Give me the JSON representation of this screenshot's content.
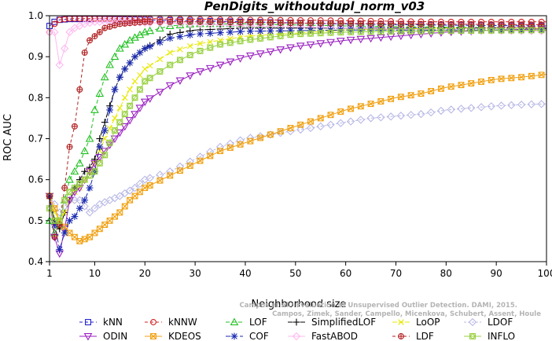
{
  "chart_data": {
    "type": "line",
    "title": "PenDigits_withoutdupl_norm_v03",
    "xlabel": "Neighborhood size",
    "ylabel": "ROC AUC",
    "xlim": [
      1,
      100
    ],
    "ylim": [
      0.4,
      1.0
    ],
    "xticks": [
      1,
      10,
      20,
      30,
      40,
      50,
      60,
      70,
      80,
      90,
      100
    ],
    "yticks": [
      0.4,
      0.5,
      0.6,
      0.7,
      0.8,
      0.9,
      1.0
    ],
    "legend_position": "bottom",
    "watermark": [
      "Campos et al.: Evaluation of Unsupervised Outlier Detection. DAMI, 2015.",
      "Campos, Zimek, Sander, Campello, Micenkova, Schubert, Assent, Houle"
    ],
    "series": [
      {
        "name": "kNN",
        "color": "#1f1fd0",
        "marker": "square",
        "dash": "4,3",
        "points": [
          [
            1,
            0.975
          ],
          [
            2,
            0.985
          ],
          [
            3,
            0.99
          ],
          [
            5,
            0.992
          ],
          [
            10,
            0.992
          ],
          [
            20,
            0.99
          ],
          [
            40,
            0.985
          ],
          [
            60,
            0.98
          ],
          [
            80,
            0.977
          ],
          [
            100,
            0.975
          ]
        ]
      },
      {
        "name": "kNNW",
        "color": "#d02020",
        "marker": "circle",
        "dash": "4,3",
        "points": [
          [
            1,
            0.96
          ],
          [
            2,
            0.98
          ],
          [
            3,
            0.99
          ],
          [
            5,
            0.993
          ],
          [
            10,
            0.993
          ],
          [
            20,
            0.993
          ],
          [
            40,
            0.99
          ],
          [
            60,
            0.988
          ],
          [
            80,
            0.985
          ],
          [
            100,
            0.985
          ]
        ]
      },
      {
        "name": "LOF",
        "color": "#20c020",
        "marker": "triangle",
        "dash": "5,3",
        "points": [
          [
            1,
            0.5
          ],
          [
            2,
            0.47
          ],
          [
            3,
            0.49
          ],
          [
            4,
            0.55
          ],
          [
            5,
            0.6
          ],
          [
            6,
            0.62
          ],
          [
            7,
            0.64
          ],
          [
            8,
            0.67
          ],
          [
            9,
            0.7
          ],
          [
            10,
            0.77
          ],
          [
            11,
            0.81
          ],
          [
            12,
            0.85
          ],
          [
            13,
            0.88
          ],
          [
            14,
            0.9
          ],
          [
            15,
            0.92
          ],
          [
            17,
            0.94
          ],
          [
            20,
            0.96
          ],
          [
            25,
            0.975
          ],
          [
            30,
            0.98
          ],
          [
            40,
            0.98
          ],
          [
            60,
            0.975
          ],
          [
            80,
            0.972
          ],
          [
            100,
            0.97
          ]
        ]
      },
      {
        "name": "SimplifiedLOF",
        "color": "#000000",
        "marker": "plus",
        "dash": "6,2",
        "points": [
          [
            1,
            0.56
          ],
          [
            2,
            0.5
          ],
          [
            3,
            0.48
          ],
          [
            4,
            0.52
          ],
          [
            5,
            0.55
          ],
          [
            6,
            0.58
          ],
          [
            7,
            0.6
          ],
          [
            8,
            0.62
          ],
          [
            9,
            0.63
          ],
          [
            10,
            0.65
          ],
          [
            11,
            0.7
          ],
          [
            12,
            0.74
          ],
          [
            13,
            0.78
          ],
          [
            14,
            0.82
          ],
          [
            15,
            0.85
          ],
          [
            16,
            0.87
          ],
          [
            18,
            0.9
          ],
          [
            20,
            0.92
          ],
          [
            25,
            0.955
          ],
          [
            30,
            0.965
          ],
          [
            40,
            0.97
          ],
          [
            60,
            0.97
          ],
          [
            80,
            0.97
          ],
          [
            100,
            0.97
          ]
        ]
      },
      {
        "name": "LoOP",
        "color": "#e8e800",
        "marker": "x",
        "dash": "6,2",
        "points": [
          [
            1,
            0.56
          ],
          [
            2,
            0.52
          ],
          [
            3,
            0.5
          ],
          [
            4,
            0.52
          ],
          [
            5,
            0.55
          ],
          [
            6,
            0.57
          ],
          [
            7,
            0.58
          ],
          [
            8,
            0.6
          ],
          [
            9,
            0.62
          ],
          [
            10,
            0.64
          ],
          [
            12,
            0.7
          ],
          [
            14,
            0.75
          ],
          [
            16,
            0.8
          ],
          [
            18,
            0.84
          ],
          [
            20,
            0.87
          ],
          [
            25,
            0.91
          ],
          [
            30,
            0.93
          ],
          [
            40,
            0.95
          ],
          [
            60,
            0.965
          ],
          [
            80,
            0.97
          ],
          [
            100,
            0.97
          ]
        ]
      },
      {
        "name": "LDOF",
        "color": "#b8b8e6",
        "marker": "diamond",
        "dash": "3,2",
        "points": [
          [
            1,
            0.56
          ],
          [
            3,
            0.52
          ],
          [
            5,
            0.55
          ],
          [
            7,
            0.55
          ],
          [
            9,
            0.52
          ],
          [
            11,
            0.54
          ],
          [
            13,
            0.55
          ],
          [
            15,
            0.56
          ],
          [
            18,
            0.58
          ],
          [
            20,
            0.6
          ],
          [
            25,
            0.62
          ],
          [
            30,
            0.65
          ],
          [
            35,
            0.68
          ],
          [
            40,
            0.7
          ],
          [
            45,
            0.71
          ],
          [
            50,
            0.72
          ],
          [
            55,
            0.73
          ],
          [
            60,
            0.74
          ],
          [
            65,
            0.75
          ],
          [
            70,
            0.755
          ],
          [
            75,
            0.76
          ],
          [
            80,
            0.77
          ],
          [
            85,
            0.775
          ],
          [
            90,
            0.78
          ],
          [
            95,
            0.783
          ],
          [
            100,
            0.785
          ]
        ]
      },
      {
        "name": "ODIN",
        "color": "#9a20c0",
        "marker": "triangle-down",
        "dash": "",
        "points": [
          [
            1,
            0.56
          ],
          [
            2,
            0.46
          ],
          [
            3,
            0.42
          ],
          [
            4,
            0.48
          ],
          [
            5,
            0.55
          ],
          [
            6,
            0.57
          ],
          [
            7,
            0.58
          ],
          [
            8,
            0.6
          ],
          [
            9,
            0.62
          ],
          [
            10,
            0.64
          ],
          [
            12,
            0.67
          ],
          [
            14,
            0.7
          ],
          [
            16,
            0.73
          ],
          [
            18,
            0.76
          ],
          [
            20,
            0.79
          ],
          [
            25,
            0.83
          ],
          [
            30,
            0.86
          ],
          [
            35,
            0.88
          ],
          [
            40,
            0.9
          ],
          [
            50,
            0.925
          ],
          [
            60,
            0.94
          ],
          [
            70,
            0.95
          ],
          [
            80,
            0.96
          ],
          [
            90,
            0.965
          ],
          [
            100,
            0.968
          ]
        ]
      },
      {
        "name": "KDEOS",
        "color": "#f0a010",
        "marker": "square-x",
        "dash": "",
        "points": [
          [
            1,
            0.56
          ],
          [
            3,
            0.5
          ],
          [
            5,
            0.47
          ],
          [
            7,
            0.45
          ],
          [
            9,
            0.46
          ],
          [
            11,
            0.48
          ],
          [
            13,
            0.5
          ],
          [
            15,
            0.52
          ],
          [
            17,
            0.55
          ],
          [
            20,
            0.58
          ],
          [
            25,
            0.61
          ],
          [
            30,
            0.64
          ],
          [
            35,
            0.67
          ],
          [
            40,
            0.69
          ],
          [
            45,
            0.71
          ],
          [
            50,
            0.73
          ],
          [
            55,
            0.75
          ],
          [
            60,
            0.77
          ],
          [
            65,
            0.785
          ],
          [
            70,
            0.8
          ],
          [
            75,
            0.81
          ],
          [
            80,
            0.825
          ],
          [
            85,
            0.835
          ],
          [
            90,
            0.845
          ],
          [
            95,
            0.85
          ],
          [
            100,
            0.857
          ]
        ]
      },
      {
        "name": "FastABOD",
        "color": "#ffb8f0",
        "marker": "diamond",
        "dash": "",
        "points": [
          [
            1,
            0.96
          ],
          [
            2,
            0.96
          ],
          [
            3,
            0.88
          ],
          [
            4,
            0.92
          ],
          [
            5,
            0.96
          ],
          [
            6,
            0.97
          ],
          [
            8,
            0.98
          ],
          [
            10,
            0.985
          ],
          [
            15,
            0.985
          ],
          [
            20,
            0.983
          ],
          [
            30,
            0.98
          ],
          [
            40,
            0.975
          ],
          [
            60,
            0.97
          ],
          [
            80,
            0.965
          ],
          [
            100,
            0.962
          ]
        ]
      },
      {
        "name": "COF",
        "color": "#1a2ab0",
        "marker": "asterisk",
        "dash": "6,3",
        "points": [
          [
            1,
            0.56
          ],
          [
            2,
            0.49
          ],
          [
            3,
            0.43
          ],
          [
            4,
            0.47
          ],
          [
            5,
            0.5
          ],
          [
            6,
            0.51
          ],
          [
            7,
            0.53
          ],
          [
            8,
            0.55
          ],
          [
            9,
            0.58
          ],
          [
            10,
            0.62
          ],
          [
            11,
            0.68
          ],
          [
            12,
            0.72
          ],
          [
            13,
            0.77
          ],
          [
            14,
            0.82
          ],
          [
            15,
            0.85
          ],
          [
            16,
            0.87
          ],
          [
            18,
            0.9
          ],
          [
            20,
            0.92
          ],
          [
            25,
            0.945
          ],
          [
            30,
            0.955
          ],
          [
            40,
            0.962
          ],
          [
            60,
            0.965
          ],
          [
            80,
            0.965
          ],
          [
            100,
            0.965
          ]
        ]
      },
      {
        "name": "LDF",
        "color": "#b02020",
        "marker": "circle-plus",
        "dash": "4,3",
        "points": [
          [
            1,
            0.56
          ],
          [
            2,
            0.46
          ],
          [
            3,
            0.49
          ],
          [
            4,
            0.58
          ],
          [
            5,
            0.68
          ],
          [
            6,
            0.73
          ],
          [
            7,
            0.82
          ],
          [
            8,
            0.91
          ],
          [
            9,
            0.94
          ],
          [
            10,
            0.95
          ],
          [
            12,
            0.97
          ],
          [
            15,
            0.98
          ],
          [
            20,
            0.985
          ],
          [
            30,
            0.985
          ],
          [
            50,
            0.982
          ],
          [
            70,
            0.98
          ],
          [
            100,
            0.978
          ]
        ]
      },
      {
        "name": "INFLO",
        "color": "#98d040",
        "marker": "square-diamond",
        "dash": "",
        "points": [
          [
            1,
            0.53
          ],
          [
            2,
            0.5
          ],
          [
            3,
            0.5
          ],
          [
            4,
            0.55
          ],
          [
            5,
            0.57
          ],
          [
            6,
            0.58
          ],
          [
            8,
            0.6
          ],
          [
            10,
            0.62
          ],
          [
            12,
            0.66
          ],
          [
            14,
            0.72
          ],
          [
            16,
            0.76
          ],
          [
            18,
            0.8
          ],
          [
            20,
            0.84
          ],
          [
            25,
            0.88
          ],
          [
            30,
            0.91
          ],
          [
            35,
            0.93
          ],
          [
            40,
            0.94
          ],
          [
            50,
            0.955
          ],
          [
            60,
            0.96
          ],
          [
            70,
            0.962
          ],
          [
            80,
            0.963
          ],
          [
            100,
            0.965
          ]
        ]
      }
    ]
  }
}
